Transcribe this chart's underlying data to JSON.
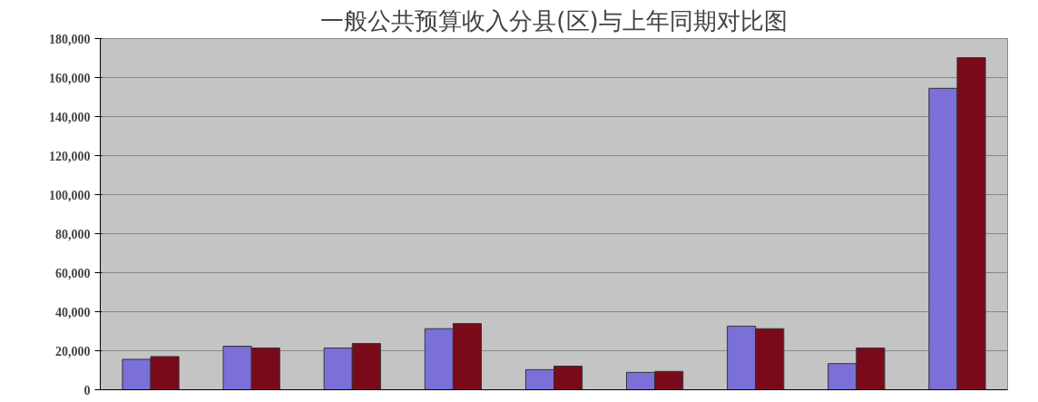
{
  "chart_data": {
    "type": "bar",
    "title": "一般公共预算收入分县(区)与上年同期对比图",
    "categories": [
      null,
      null,
      null,
      null,
      null,
      null,
      null,
      null,
      null
    ],
    "series": [
      {
        "color": "#7b6fd8",
        "values": [
          15600,
          22300,
          21400,
          31300,
          10300,
          8900,
          32600,
          13400,
          154500
        ]
      },
      {
        "color": "#7a0a1a",
        "values": [
          17000,
          21400,
          23700,
          33900,
          12100,
          9400,
          31300,
          21400,
          170200
        ]
      }
    ],
    "ylim": [
      0,
      180000
    ],
    "yticks": [
      0,
      {
        "value": 20000,
        "label": "20,000"
      },
      {
        "value": 40000,
        "label": "40,000"
      },
      {
        "value": 60000,
        "label": "60,000"
      },
      {
        "value": 80000,
        "label": "80,000"
      },
      {
        "value": 100000,
        "label": "100,000"
      },
      {
        "value": 120000,
        "label": "120,000"
      },
      {
        "value": 140000,
        "label": "140,000"
      },
      {
        "value": 160000,
        "label": "160,000"
      },
      {
        "value": 180000,
        "label": "180,000"
      }
    ],
    "grid": "y"
  }
}
